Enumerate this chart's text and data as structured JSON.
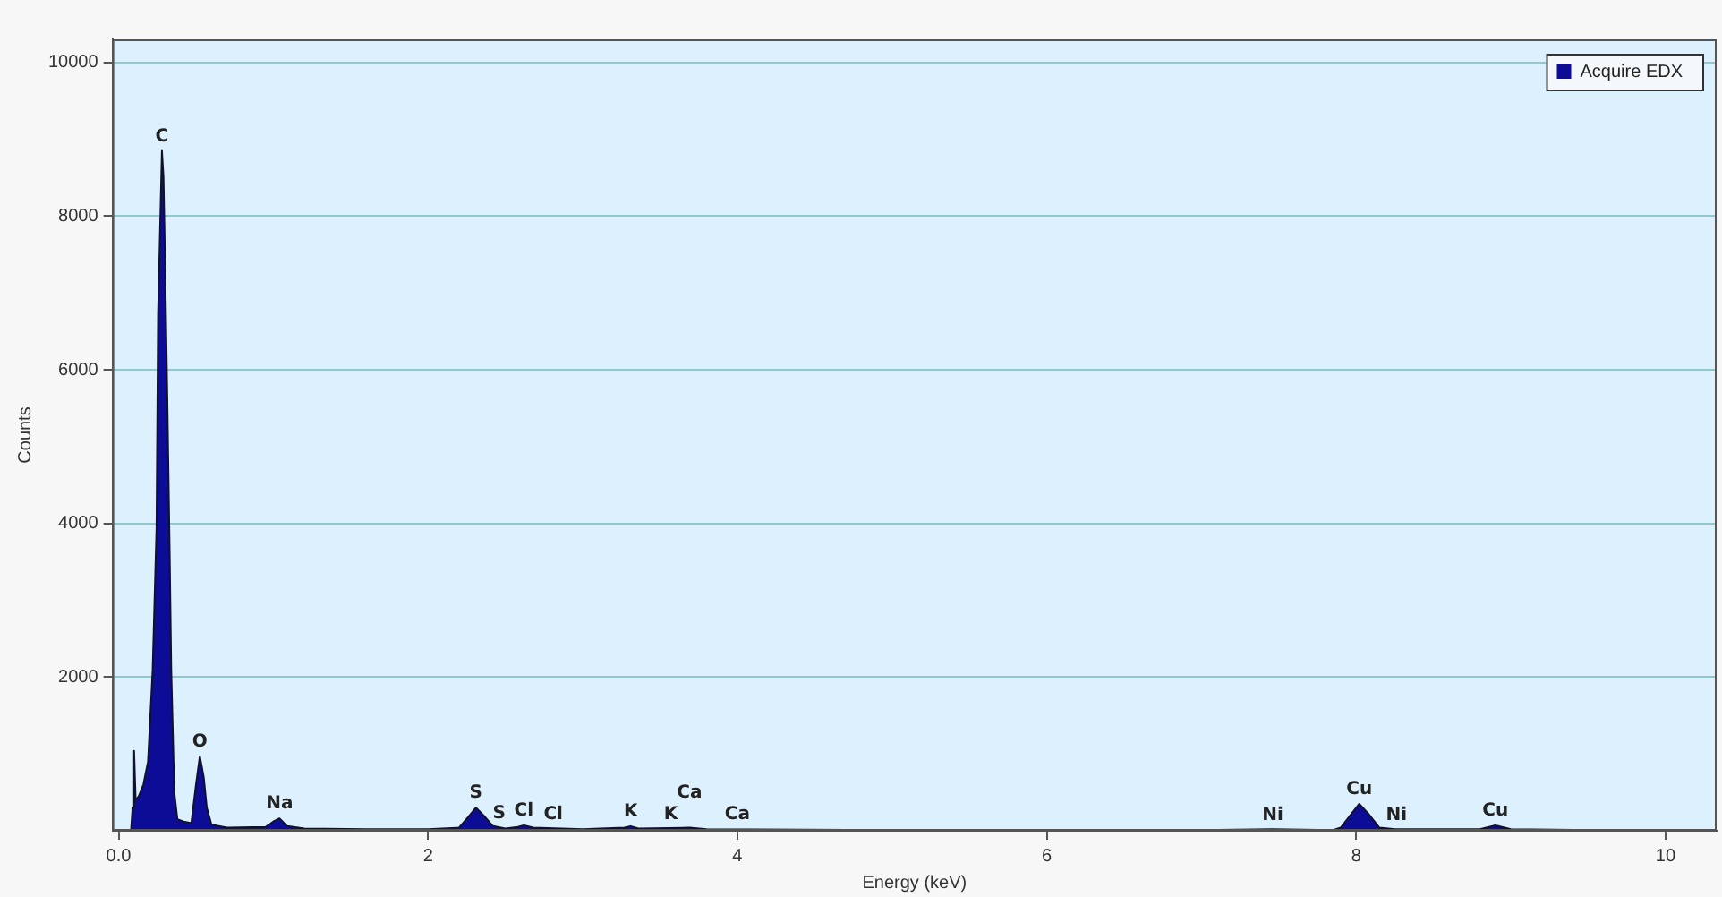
{
  "chart_data": {
    "type": "area",
    "xlabel": "Energy (keV)",
    "ylabel": "Counts",
    "xlim": [
      -0.04,
      10.33
    ],
    "ylim": [
      0,
      10300
    ],
    "xticks": [
      {
        "value": 0,
        "label": "0.0"
      },
      2,
      4,
      6,
      8,
      10
    ],
    "yticks": [
      2000,
      4000,
      6000,
      8000,
      10000
    ],
    "grid": "y",
    "legend": "top right",
    "x": [
      0.08,
      0.09,
      0.1,
      0.11,
      0.13,
      0.16,
      0.19,
      0.22,
      0.245,
      0.255,
      0.28,
      0.29,
      0.3,
      0.315,
      0.33,
      0.34,
      0.36,
      0.38,
      0.42,
      0.47,
      0.5,
      0.525,
      0.55,
      0.57,
      0.6,
      0.7,
      0.95,
      1.0,
      1.04,
      1.09,
      1.2,
      1.6,
      2.0,
      2.2,
      2.26,
      2.31,
      2.36,
      2.42,
      2.5,
      2.58,
      2.62,
      2.68,
      3.0,
      3.27,
      3.31,
      3.36,
      3.69,
      3.8,
      5.0,
      7.0,
      7.46,
      7.85,
      7.9,
      7.95,
      8.02,
      8.08,
      8.15,
      8.25,
      8.8,
      8.9,
      9.0,
      10.0,
      10.3
    ],
    "series": [
      {
        "name": "Acquire EDX",
        "color": "#0c0c96",
        "values": [
          0,
          300,
          1040,
          400,
          450,
          600,
          900,
          2090,
          3940,
          6730,
          8850,
          8510,
          7420,
          5600,
          3600,
          2100,
          500,
          150,
          120,
          100,
          600,
          970,
          700,
          300,
          80,
          40,
          50,
          120,
          160,
          60,
          30,
          20,
          20,
          40,
          180,
          300,
          200,
          60,
          30,
          50,
          70,
          40,
          20,
          40,
          60,
          30,
          40,
          20,
          10,
          10,
          20,
          10,
          40,
          170,
          350,
          220,
          40,
          20,
          20,
          70,
          20,
          0,
          0
        ]
      }
    ],
    "annotations": [
      {
        "text": "C",
        "x": 0.28,
        "y": 8850
      },
      {
        "text": "O",
        "x": 0.525,
        "y": 970
      },
      {
        "text": "Na",
        "x": 1.04,
        "y": 160
      },
      {
        "text": "S",
        "x": 2.31,
        "y": 300
      },
      {
        "text": "S",
        "x": 2.46,
        "y": 40
      },
      {
        "text": "Cl",
        "x": 2.62,
        "y": 70
      },
      {
        "text": "Cl",
        "x": 2.81,
        "y": 30
      },
      {
        "text": "K",
        "x": 3.31,
        "y": 60
      },
      {
        "text": "K",
        "x": 3.57,
        "y": 30
      },
      {
        "text": "Ca",
        "x": 3.69,
        "y": 40
      },
      {
        "text": "Ca",
        "x": 4.0,
        "y": 20
      },
      {
        "text": "Ni",
        "x": 7.46,
        "y": 15
      },
      {
        "text": "Cu",
        "x": 8.02,
        "y": 350
      },
      {
        "text": "Ni",
        "x": 8.26,
        "y": 15
      },
      {
        "text": "Cu",
        "x": 8.9,
        "y": 70
      }
    ]
  }
}
